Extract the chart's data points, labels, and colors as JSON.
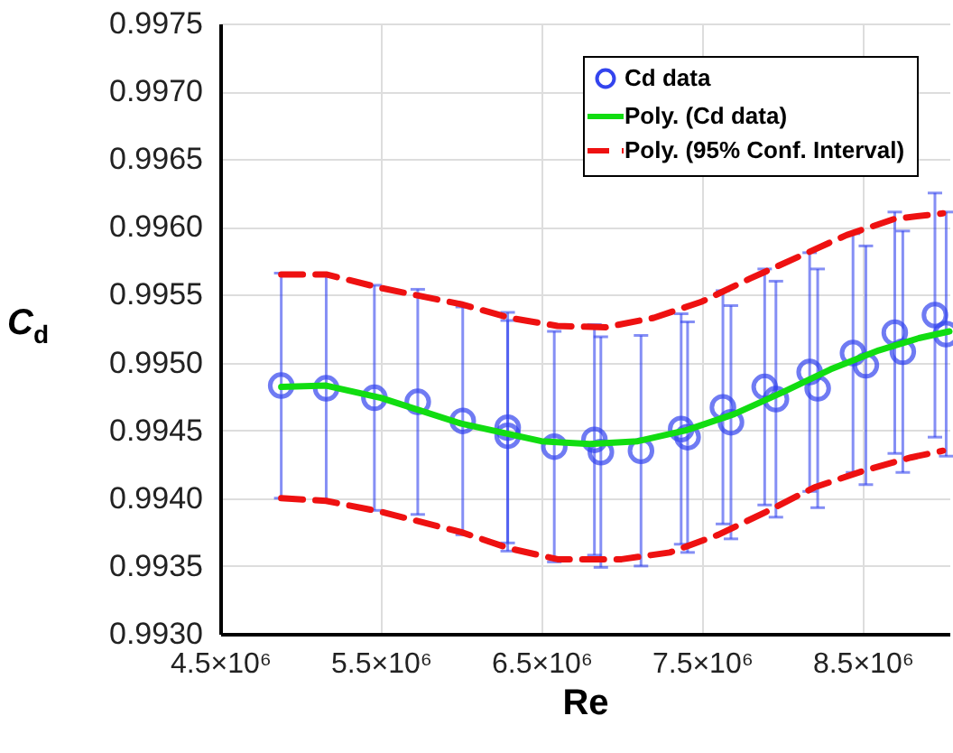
{
  "chart_data": {
    "type": "scatter",
    "xlabel": "Re",
    "ylabel": "C$_{d}$",
    "xlim": [
      4500000,
      9040000
    ],
    "ylim": [
      0.993,
      0.9975
    ],
    "xticks": [
      {
        "value": 4500000,
        "label": "4.5×10⁶"
      },
      {
        "value": 5500000,
        "label": "5.5×10⁶"
      },
      {
        "value": 6500000,
        "label": "6.5×10⁶"
      },
      {
        "value": 7500000,
        "label": "7.5×10⁶"
      },
      {
        "value": 8500000,
        "label": "8.5×10⁶"
      }
    ],
    "yticks": [
      {
        "value": 0.993,
        "label": "0.9930"
      },
      0.9935,
      {
        "value": 0.994,
        "label": "0.9940"
      },
      0.9945,
      {
        "value": 0.995,
        "label": "0.9950"
      },
      0.9955,
      {
        "value": 0.996,
        "label": "0.9960"
      },
      0.9965,
      {
        "value": 0.997,
        "label": "0.9970"
      },
      0.9975
    ],
    "grid": true,
    "legend": "top right",
    "series": [
      {
        "name": "Cd data",
        "marker": "circle",
        "color": "#3344ee",
        "x": [
          4880000,
          5160000,
          5460000,
          5730000,
          6010000,
          6290000,
          6290000,
          6580000,
          6830000,
          6870000,
          7120000,
          7370000,
          7410000,
          7630000,
          7680000,
          7890000,
          7960000,
          8170000,
          8220000,
          8440000,
          8520000,
          8700000,
          8750000,
          8950000,
          9020000
        ],
        "values": [
          0.99483,
          0.99481,
          0.99474,
          0.99471,
          0.99457,
          0.99452,
          0.99446,
          0.99438,
          0.99443,
          0.99434,
          0.99435,
          0.99451,
          0.99445,
          0.99467,
          0.99456,
          0.99482,
          0.99473,
          0.99493,
          0.99481,
          0.99507,
          0.99498,
          0.99522,
          0.99508,
          0.99535,
          0.99521
        ],
        "errors": [
          0.00083,
          0.00083,
          0.00083,
          0.00083,
          0.00084,
          0.00085,
          0.00085,
          0.00085,
          0.00085,
          0.00085,
          0.00085,
          0.00085,
          0.00085,
          0.00086,
          0.00086,
          0.00087,
          0.00087,
          0.00088,
          0.00088,
          0.00088,
          0.00088,
          0.00089,
          0.00089,
          0.0009,
          0.0009
        ]
      },
      {
        "name": "Poly. (Cd data)",
        "type": "line",
        "line_style": "solid",
        "color": "#11dd11",
        "x": [
          4880000,
          5160000,
          5500000,
          6000000,
          6500000,
          6800000,
          7100000,
          7400000,
          7700000,
          8000000,
          8300000,
          8600000,
          8850000,
          9040000
        ],
        "values": [
          0.99482,
          0.99483,
          0.99474,
          0.99455,
          0.99442,
          0.9944,
          0.99442,
          0.9945,
          0.99462,
          0.99478,
          0.99495,
          0.99509,
          0.99518,
          0.99523
        ]
      },
      {
        "name": "Poly. (95% Conf. Interval)",
        "type": "line",
        "line_style": "dashed",
        "color": "#ee1111",
        "x": [
          4880000,
          5160000,
          5500000,
          6000000,
          6300000,
          6600000,
          6900000,
          7200000,
          7500000,
          7800000,
          8100000,
          8400000,
          8700000,
          9000000
        ],
        "values": [
          0.99565,
          0.99565,
          0.99555,
          0.99543,
          0.99533,
          0.99527,
          0.99526,
          0.99533,
          0.99545,
          0.99562,
          0.99578,
          0.99594,
          0.99606,
          0.9961
        ]
      },
      {
        "type": "line",
        "line_style": "dashed",
        "color": "#ee1111",
        "x": [
          4880000,
          5160000,
          5500000,
          6000000,
          6300000,
          6600000,
          7000000,
          7300000,
          7600000,
          7900000,
          8200000,
          8500000,
          8800000,
          9000000
        ],
        "values": [
          0.994,
          0.99398,
          0.9939,
          0.99375,
          0.99363,
          0.99355,
          0.99355,
          0.9936,
          0.99373,
          0.9939,
          0.99408,
          0.9942,
          0.9943,
          0.99435
        ]
      }
    ]
  }
}
